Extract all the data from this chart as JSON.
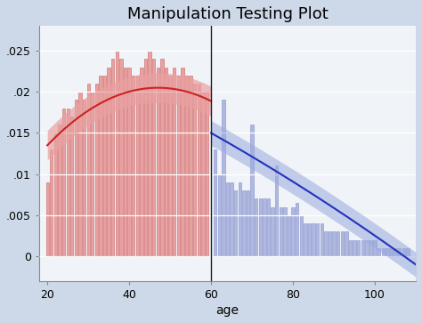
{
  "title": "Manipulation Testing Plot",
  "xlabel": "age",
  "cutoff": 60,
  "xlim": [
    18,
    110
  ],
  "ylim": [
    -0.003,
    0.028
  ],
  "yticks": [
    0,
    0.005,
    0.01,
    0.015,
    0.02,
    0.025
  ],
  "ytick_labels": [
    "0",
    ".005",
    ".01",
    ".015",
    ".02",
    ".025"
  ],
  "xticks": [
    20,
    40,
    60,
    80,
    100
  ],
  "bg_color": "#cdd9e8",
  "plot_bg_color": "#f0f4f8",
  "left_bar_color": "#e8a0a0",
  "left_bar_edge": "#cc6666",
  "right_bar_color": "#b0b8e0",
  "right_bar_edge": "#8090cc",
  "left_curve_color": "#cc2222",
  "left_ci_color": "#e8a0a0",
  "right_curve_color": "#2233bb",
  "right_ci_color": "#9aa8dd",
  "vline_color": "#222222",
  "title_fontsize": 13,
  "axis_fontsize": 10,
  "tick_fontsize": 9,
  "left_bar_centers": [
    20,
    21,
    22,
    23,
    24,
    25,
    26,
    27,
    28,
    29,
    30,
    31,
    32,
    33,
    34,
    35,
    36,
    37,
    38,
    39,
    40,
    41,
    42,
    43,
    44,
    45,
    46,
    47,
    48,
    49,
    50,
    51,
    52,
    53,
    54,
    55,
    56,
    57,
    58,
    59
  ],
  "left_bar_heights": [
    0.009,
    0.013,
    0.015,
    0.016,
    0.018,
    0.018,
    0.017,
    0.019,
    0.02,
    0.019,
    0.021,
    0.02,
    0.021,
    0.022,
    0.022,
    0.023,
    0.024,
    0.025,
    0.024,
    0.023,
    0.023,
    0.022,
    0.022,
    0.023,
    0.024,
    0.025,
    0.024,
    0.023,
    0.024,
    0.023,
    0.022,
    0.023,
    0.022,
    0.023,
    0.022,
    0.022,
    0.021,
    0.021,
    0.02,
    0.02
  ],
  "right_bar_centers": [
    61,
    62,
    63,
    64,
    65,
    66,
    67,
    68,
    69,
    70,
    71,
    72,
    73,
    74,
    75,
    76,
    77,
    78,
    79,
    80,
    81,
    82,
    83,
    84,
    85,
    86,
    87,
    88,
    89,
    90,
    91,
    92,
    93,
    94,
    95,
    96,
    97,
    98,
    99,
    100,
    101,
    102,
    103,
    104,
    105,
    106,
    107,
    108
  ],
  "right_bar_heights": [
    0.013,
    0.01,
    0.019,
    0.009,
    0.009,
    0.008,
    0.009,
    0.008,
    0.008,
    0.016,
    0.007,
    0.007,
    0.007,
    0.007,
    0.006,
    0.011,
    0.006,
    0.006,
    0.005,
    0.006,
    0.0065,
    0.005,
    0.004,
    0.004,
    0.004,
    0.004,
    0.004,
    0.003,
    0.003,
    0.003,
    0.003,
    0.003,
    0.003,
    0.002,
    0.002,
    0.002,
    0.002,
    0.002,
    0.002,
    0.002,
    0.001,
    0.001,
    0.001,
    0.001,
    0.001,
    0.001,
    0.001,
    0.001
  ]
}
